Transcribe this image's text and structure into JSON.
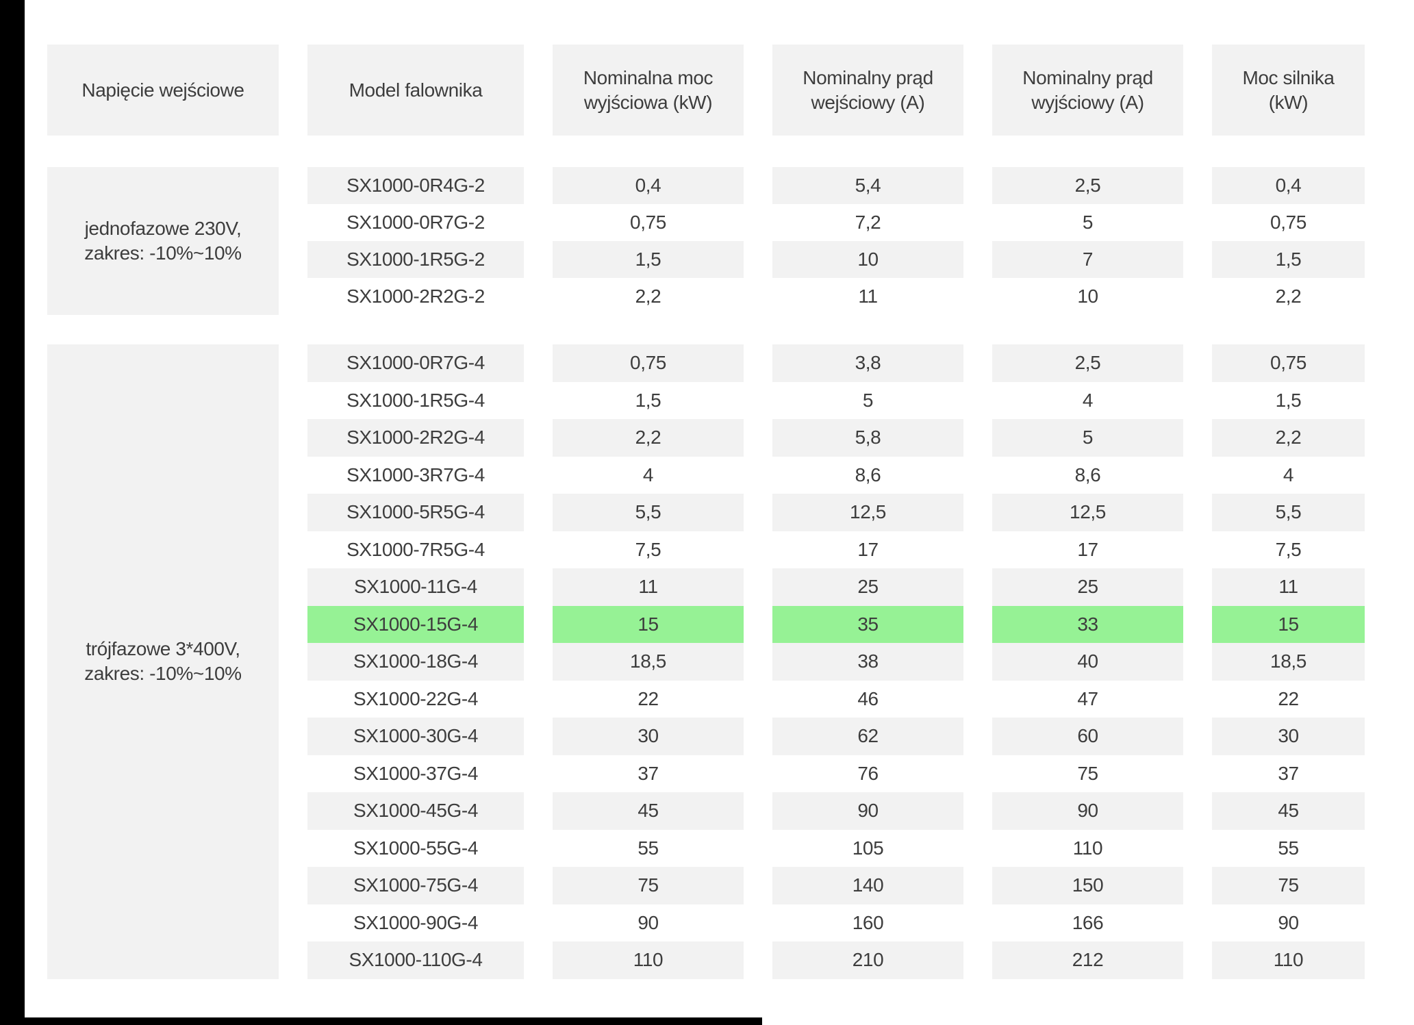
{
  "table": {
    "columns": [
      {
        "id": "napiecie-wejsciowe",
        "lines": [
          "Napięcie wejściowe"
        ]
      },
      {
        "id": "model-falownika",
        "lines": [
          "Model falownika"
        ]
      },
      {
        "id": "nominalna-moc-wyjsciowa",
        "lines": [
          "Nominalna moc",
          "wyjściowa (kW)"
        ]
      },
      {
        "id": "nominalny-prad-wejsciowy",
        "lines": [
          "Nominalny prąd",
          "wejściowy (A)"
        ]
      },
      {
        "id": "nominalny-prad-wyjsciowy",
        "lines": [
          "Nominalny prąd",
          "wyjściowy (A)"
        ]
      },
      {
        "id": "moc-silnika",
        "lines": [
          "Moc silnika",
          "(kW)"
        ]
      }
    ],
    "groups": [
      {
        "label_lines": [
          "jednofazowe 230V,",
          "zakres: -10%~10%"
        ],
        "highlight_row": null,
        "rows": [
          [
            "SX1000-0R4G-2",
            "0,4",
            "5,4",
            "2,5",
            "0,4"
          ],
          [
            "SX1000-0R7G-2",
            "0,75",
            "7,2",
            "5",
            "0,75"
          ],
          [
            "SX1000-1R5G-2",
            "1,5",
            "10",
            "7",
            "1,5"
          ],
          [
            "SX1000-2R2G-2",
            "2,2",
            "11",
            "10",
            "2,2"
          ]
        ]
      },
      {
        "label_lines": [
          "trójfazowe 3*400V,",
          "zakres: -10%~10%"
        ],
        "highlight_row": 7,
        "rows": [
          [
            "SX1000-0R7G-4",
            "0,75",
            "3,8",
            "2,5",
            "0,75"
          ],
          [
            "SX1000-1R5G-4",
            "1,5",
            "5",
            "4",
            "1,5"
          ],
          [
            "SX1000-2R2G-4",
            "2,2",
            "5,8",
            "5",
            "2,2"
          ],
          [
            "SX1000-3R7G-4",
            "4",
            "8,6",
            "8,6",
            "4"
          ],
          [
            "SX1000-5R5G-4",
            "5,5",
            "12,5",
            "12,5",
            "5,5"
          ],
          [
            "SX1000-7R5G-4",
            "7,5",
            "17",
            "17",
            "7,5"
          ],
          [
            "SX1000-11G-4",
            "11",
            "25",
            "25",
            "11"
          ],
          [
            "SX1000-15G-4",
            "15",
            "35",
            "33",
            "15"
          ],
          [
            "SX1000-18G-4",
            "18,5",
            "38",
            "40",
            "18,5"
          ],
          [
            "SX1000-22G-4",
            "22",
            "46",
            "47",
            "22"
          ],
          [
            "SX1000-30G-4",
            "30",
            "62",
            "60",
            "30"
          ],
          [
            "SX1000-37G-4",
            "37",
            "76",
            "75",
            "37"
          ],
          [
            "SX1000-45G-4",
            "45",
            "90",
            "90",
            "45"
          ],
          [
            "SX1000-55G-4",
            "55",
            "105",
            "110",
            "55"
          ],
          [
            "SX1000-75G-4",
            "75",
            "140",
            "150",
            "75"
          ],
          [
            "SX1000-90G-4",
            "90",
            "160",
            "166",
            "90"
          ],
          [
            "SX1000-110G-4",
            "110",
            "210",
            "212",
            "110"
          ]
        ]
      }
    ]
  },
  "colors": {
    "cell_bg": "#f2f2f2",
    "highlight": "#96f295",
    "text": "#3d3d3d",
    "edge_bar": "#000000"
  }
}
